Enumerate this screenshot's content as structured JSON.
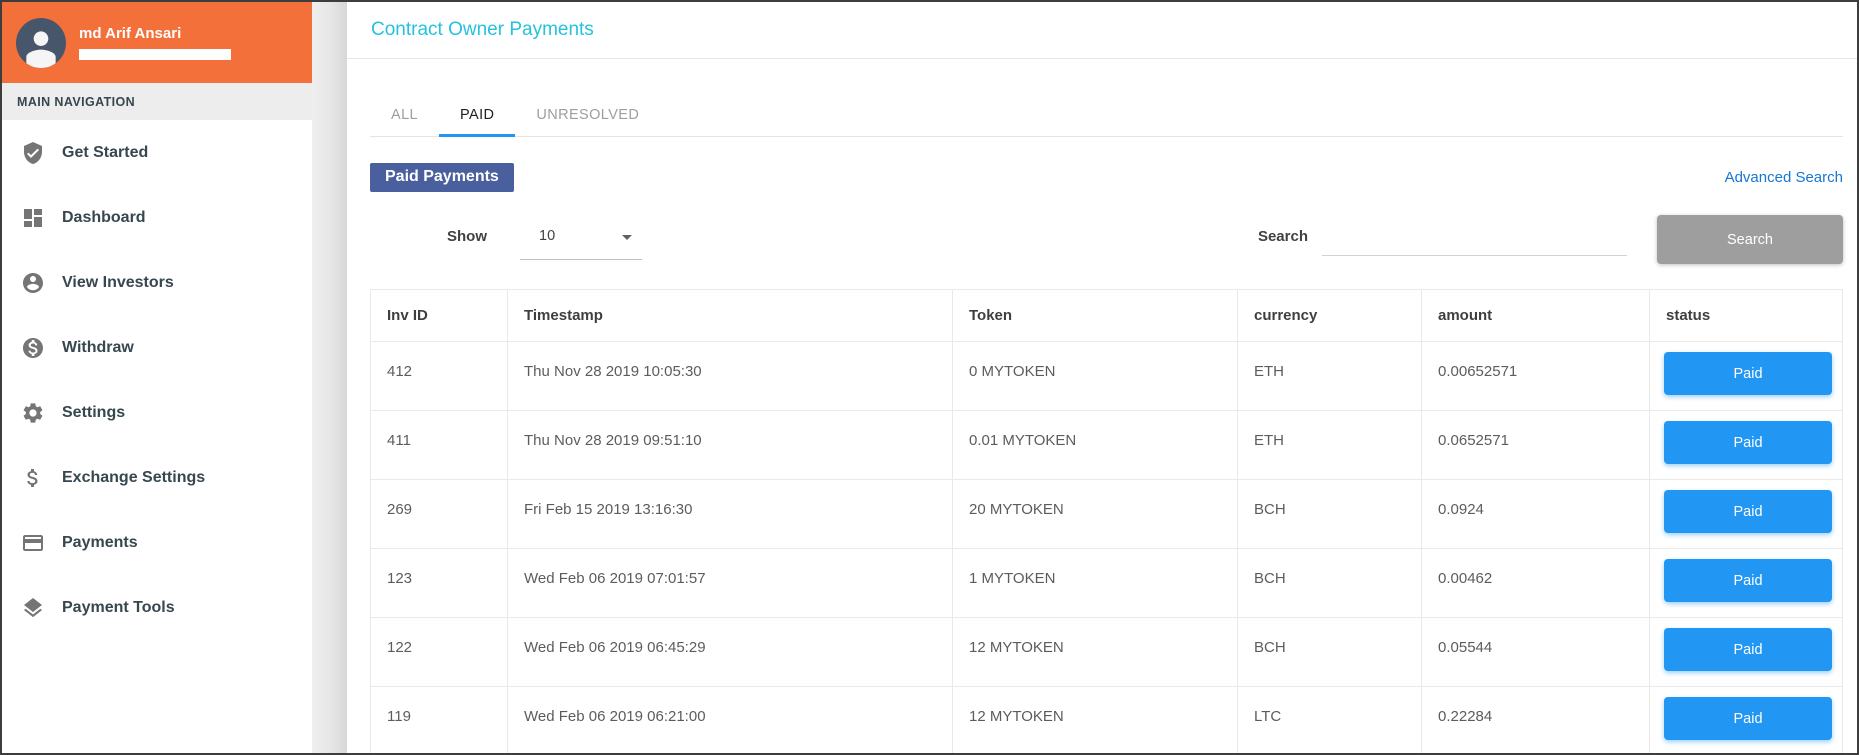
{
  "user": {
    "name": "md Arif Ansari"
  },
  "sidebar": {
    "section_label": "MAIN NAVIGATION",
    "items": [
      {
        "label": "Get Started",
        "icon": "shield-check-icon"
      },
      {
        "label": "Dashboard",
        "icon": "dashboard-grid-icon"
      },
      {
        "label": "View Investors",
        "icon": "person-circle-icon"
      },
      {
        "label": "Withdraw",
        "icon": "dollar-circle-icon"
      },
      {
        "label": "Settings",
        "icon": "gear-icon"
      },
      {
        "label": "Exchange Settings",
        "icon": "dollar-sign-icon"
      },
      {
        "label": "Payments",
        "icon": "credit-card-icon"
      },
      {
        "label": "Payment Tools",
        "icon": "layers-icon"
      }
    ]
  },
  "header": {
    "title": "Contract Owner Payments"
  },
  "tabs": [
    {
      "label": "ALL",
      "active": false
    },
    {
      "label": "PAID",
      "active": true
    },
    {
      "label": "UNRESOLVED",
      "active": false
    }
  ],
  "toolbar": {
    "badge_label": "Paid Payments",
    "advanced_search_label": "Advanced Search",
    "show_label": "Show",
    "show_value": "10",
    "search_label": "Search",
    "search_value": "",
    "search_button_label": "Search"
  },
  "table": {
    "columns": [
      "Inv ID",
      "Timestamp",
      "Token",
      "currency",
      "amount",
      "status"
    ],
    "rows": [
      {
        "inv_id": "412",
        "timestamp": "Thu Nov 28 2019 10:05:30",
        "token": "0 MYTOKEN",
        "currency": "ETH",
        "amount": "0.00652571",
        "status": "Paid"
      },
      {
        "inv_id": "411",
        "timestamp": "Thu Nov 28 2019 09:51:10",
        "token": "0.01 MYTOKEN",
        "currency": "ETH",
        "amount": "0.0652571",
        "status": "Paid"
      },
      {
        "inv_id": "269",
        "timestamp": "Fri Feb 15 2019 13:16:30",
        "token": "20 MYTOKEN",
        "currency": "BCH",
        "amount": "0.0924",
        "status": "Paid"
      },
      {
        "inv_id": "123",
        "timestamp": "Wed Feb 06 2019 07:01:57",
        "token": "1 MYTOKEN",
        "currency": "BCH",
        "amount": "0.00462",
        "status": "Paid"
      },
      {
        "inv_id": "122",
        "timestamp": "Wed Feb 06 2019 06:45:29",
        "token": "12 MYTOKEN",
        "currency": "BCH",
        "amount": "0.05544",
        "status": "Paid"
      },
      {
        "inv_id": "119",
        "timestamp": "Wed Feb 06 2019 06:21:00",
        "token": "12 MYTOKEN",
        "currency": "LTC",
        "amount": "0.22284",
        "status": "Paid"
      }
    ]
  },
  "colors": {
    "brand-orange": "#f4703b",
    "avatar-bg": "#47566b",
    "title-cyan": "#26c2dd",
    "accent-blue": "#2196f3",
    "badge-indigo": "#4a5f9d",
    "link-blue": "#1976d2",
    "button-gray": "#9e9e9e"
  }
}
